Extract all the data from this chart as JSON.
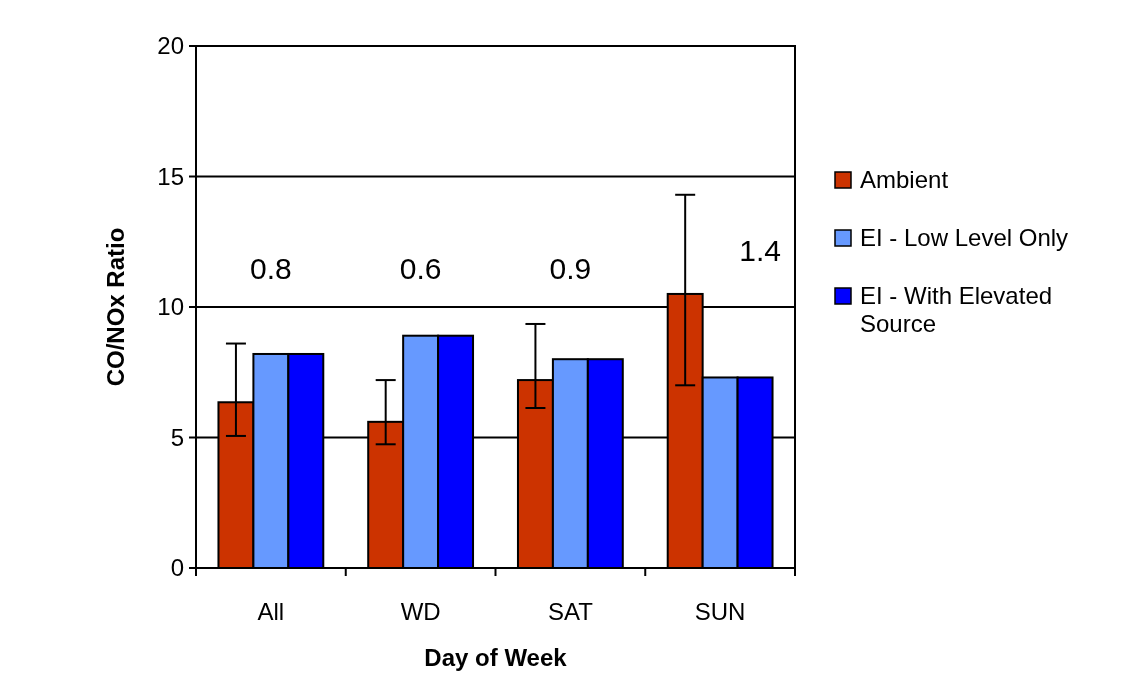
{
  "chart_data": {
    "type": "bar",
    "xlabel": "Day of Week",
    "ylabel": "CO/NOx Ratio",
    "categories": [
      "All",
      "WD",
      "SAT",
      "SUN"
    ],
    "series": [
      {
        "name": "Ambient",
        "color": "#cc3300",
        "values": [
          6.35,
          5.6,
          7.2,
          10.5
        ],
        "errors": [
          [
            5.06,
            8.6
          ],
          [
            4.74,
            7.2
          ],
          [
            6.13,
            9.35
          ],
          [
            7.0,
            14.3
          ]
        ]
      },
      {
        "name": "EI - Low  Level Only",
        "color": "#6699ff",
        "values": [
          8.2,
          8.9,
          8.0,
          7.3
        ]
      },
      {
        "name": "EI - With Elevated Source",
        "color": "#0000ff",
        "values": [
          8.2,
          8.9,
          8.0,
          7.3
        ]
      }
    ],
    "ylim": [
      0,
      20
    ],
    "yticks": [
      0,
      5,
      10,
      15,
      20
    ],
    "grid": "y",
    "legend": "right",
    "annotations": [
      "0.8",
      "0.6",
      "0.9",
      "1.4"
    ]
  }
}
